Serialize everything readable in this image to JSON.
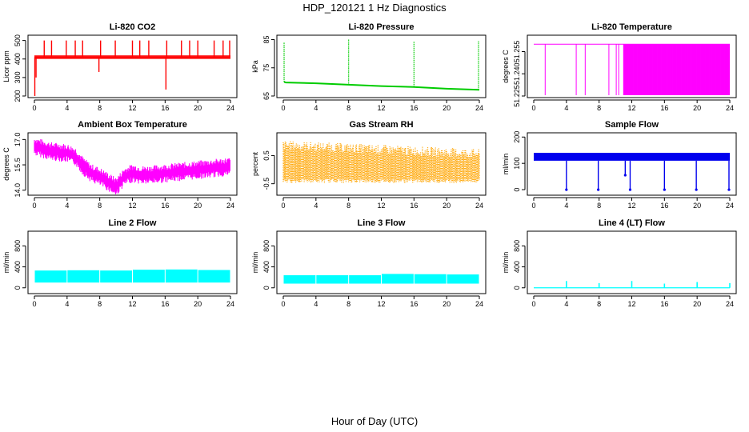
{
  "title": "HDP_120121  1 Hz Diagnostics",
  "xlabel": "Hour of Day (UTC)",
  "chart_data": [
    {
      "type": "line",
      "title": "Li-820 CO2",
      "ylabel": "Licor ppm",
      "color": "#ff0000",
      "xticks": [
        "0",
        "4",
        "8",
        "12",
        "16",
        "20",
        "24"
      ],
      "yticks": [
        {
          "v": 200,
          "label": "200"
        },
        {
          "v": 300,
          "label": "300"
        },
        {
          "v": 400,
          "label": "400"
        },
        {
          "v": 500,
          "label": "500"
        }
      ],
      "xlim": [
        0,
        24
      ],
      "ylim": [
        200,
        520
      ],
      "baseline": 410,
      "band": [
        400,
        420
      ],
      "spikes": [
        {
          "x": 0.05,
          "y": 200
        },
        {
          "x": 0.2,
          "y": 300
        },
        {
          "x": 1.2,
          "y": 500
        },
        {
          "x": 2.1,
          "y": 500
        },
        {
          "x": 3.9,
          "y": 500
        },
        {
          "x": 5.0,
          "y": 500
        },
        {
          "x": 5.9,
          "y": 500
        },
        {
          "x": 7.9,
          "y": 330
        },
        {
          "x": 8.1,
          "y": 500
        },
        {
          "x": 9.9,
          "y": 500
        },
        {
          "x": 12.0,
          "y": 500
        },
        {
          "x": 12.9,
          "y": 500
        },
        {
          "x": 14.0,
          "y": 500
        },
        {
          "x": 16.1,
          "y": 235
        },
        {
          "x": 16.2,
          "y": 500
        },
        {
          "x": 18.0,
          "y": 500
        },
        {
          "x": 19.0,
          "y": 500
        },
        {
          "x": 20.0,
          "y": 500
        },
        {
          "x": 22.0,
          "y": 500
        },
        {
          "x": 23.1,
          "y": 500
        },
        {
          "x": 23.9,
          "y": 500
        }
      ]
    },
    {
      "type": "line",
      "title": "Li-820 Pressure",
      "ylabel": "kPa",
      "color": "#00cc00",
      "xticks": [
        "0",
        "4",
        "8",
        "12",
        "16",
        "20",
        "24"
      ],
      "yticks": [
        {
          "v": 65,
          "label": "65"
        },
        {
          "v": 75,
          "label": "75"
        },
        {
          "v": 85,
          "label": "85"
        }
      ],
      "xlim": [
        0,
        24
      ],
      "ylim": [
        65,
        86
      ],
      "series": [
        {
          "x": 0.1,
          "y": 70
        },
        {
          "x": 0.3,
          "y": 69.8
        },
        {
          "x": 4,
          "y": 69.5
        },
        {
          "x": 8,
          "y": 69
        },
        {
          "x": 12,
          "y": 68.5
        },
        {
          "x": 16,
          "y": 68.2
        },
        {
          "x": 20,
          "y": 67.6
        },
        {
          "x": 24,
          "y": 67.2
        }
      ],
      "spikes": [
        {
          "x": 0.1,
          "y": 84
        },
        {
          "x": 8.0,
          "y": 85
        },
        {
          "x": 16.0,
          "y": 84.5
        },
        {
          "x": 23.9,
          "y": 84.5
        }
      ]
    },
    {
      "type": "line",
      "title": "Li-820 Temperature",
      "ylabel": "degrees C",
      "color": "#ff00ff",
      "xticks": [
        "0",
        "4",
        "8",
        "12",
        "16",
        "20",
        "24"
      ],
      "yticks": [
        {
          "v": 51.225,
          "label": "51.225"
        },
        {
          "v": 51.24,
          "label": "51.240"
        },
        {
          "v": 51.255,
          "label": "51.255"
        }
      ],
      "xlim": [
        0,
        24
      ],
      "ylim": [
        51.225,
        51.265
      ],
      "top_value": 51.26,
      "dense_from": 11,
      "drops": [
        1.4,
        5.2,
        6.3,
        9.2,
        10.1,
        10.4
      ]
    },
    {
      "type": "line",
      "title": "Ambient Box Temperature",
      "ylabel": "degrees C",
      "color": "#ff00ff",
      "xticks": [
        "0",
        "4",
        "8",
        "12",
        "16",
        "20",
        "24"
      ],
      "yticks": [
        {
          "v": 14.0,
          "label": "14.0"
        },
        {
          "v": 15.5,
          "label": "15.5"
        },
        {
          "v": 17.0,
          "label": "17.0"
        }
      ],
      "xlim": [
        0,
        24
      ],
      "ylim": [
        13.8,
        17.3
      ],
      "series": [
        {
          "x": 0,
          "y": 16.6
        },
        {
          "x": 2,
          "y": 16.3
        },
        {
          "x": 4,
          "y": 16.2
        },
        {
          "x": 5,
          "y": 16.0
        },
        {
          "x": 6,
          "y": 15.4
        },
        {
          "x": 7,
          "y": 15.0
        },
        {
          "x": 8,
          "y": 14.8
        },
        {
          "x": 9,
          "y": 14.5
        },
        {
          "x": 10,
          "y": 14.2
        },
        {
          "x": 11,
          "y": 14.8
        },
        {
          "x": 12,
          "y": 15.0
        },
        {
          "x": 13,
          "y": 14.9
        },
        {
          "x": 14,
          "y": 14.9
        },
        {
          "x": 16,
          "y": 15.0
        },
        {
          "x": 18,
          "y": 15.1
        },
        {
          "x": 20,
          "y": 15.2
        },
        {
          "x": 22,
          "y": 15.3
        },
        {
          "x": 24,
          "y": 15.4
        }
      ],
      "spread": 0.55
    },
    {
      "type": "line",
      "title": "Gas Stream RH",
      "ylabel": "percent",
      "color": "#ffa500",
      "xticks": [
        "0",
        "4",
        "8",
        "12",
        "16",
        "20",
        "24"
      ],
      "yticks": [
        {
          "v": -0.5,
          "label": "-0.5"
        },
        {
          "v": 0.5,
          "label": "0.5"
        }
      ],
      "xlim": [
        0,
        24
      ],
      "ylim": [
        -0.85,
        1.25
      ],
      "band_low": -0.4,
      "band_high_start": 0.85,
      "band_high_end": 0.55
    },
    {
      "type": "line",
      "title": "Sample Flow",
      "ylabel": "ml/min",
      "color": "#0000ee",
      "xticks": [
        "0",
        "4",
        "8",
        "12",
        "16",
        "20",
        "24"
      ],
      "yticks": [
        {
          "v": 0,
          "label": "0"
        },
        {
          "v": 100,
          "label": "100"
        },
        {
          "v": 200,
          "label": "200"
        }
      ],
      "xlim": [
        0,
        24
      ],
      "ylim": [
        -15,
        210
      ],
      "band": [
        110,
        140
      ],
      "dips": [
        {
          "x": 4.0,
          "y": 0
        },
        {
          "x": 7.9,
          "y": 0
        },
        {
          "x": 11.8,
          "y": 0
        },
        {
          "x": 11.2,
          "y": 55
        },
        {
          "x": 16.0,
          "y": 0
        },
        {
          "x": 19.9,
          "y": 0
        },
        {
          "x": 23.9,
          "y": 0
        }
      ]
    },
    {
      "type": "area",
      "title": "Line 2 Flow",
      "ylabel": "ml/min",
      "color": "#00ffff",
      "xticks": [
        "0",
        "4",
        "8",
        "12",
        "16",
        "20",
        "24"
      ],
      "yticks": [
        {
          "v": 0,
          "label": "0"
        },
        {
          "v": 400,
          "label": "400"
        },
        {
          "v": 800,
          "label": "800"
        }
      ],
      "xlim": [
        0,
        24
      ],
      "ylim": [
        -80,
        1050
      ],
      "band_low": 100,
      "segments": [
        {
          "x0": 0,
          "x1": 4,
          "top": 330
        },
        {
          "x0": 4,
          "x1": 8,
          "top": 335
        },
        {
          "x0": 8,
          "x1": 12,
          "top": 330
        },
        {
          "x0": 12,
          "x1": 16,
          "top": 345
        },
        {
          "x0": 16,
          "x1": 20,
          "top": 350
        },
        {
          "x0": 20,
          "x1": 24,
          "top": 340
        }
      ]
    },
    {
      "type": "area",
      "title": "Line 3 Flow",
      "ylabel": "ml/min",
      "color": "#00ffff",
      "xticks": [
        "0",
        "4",
        "8",
        "12",
        "16",
        "20",
        "24"
      ],
      "yticks": [
        {
          "v": 0,
          "label": "0"
        },
        {
          "v": 400,
          "label": "400"
        },
        {
          "v": 800,
          "label": "800"
        }
      ],
      "xlim": [
        0,
        24
      ],
      "ylim": [
        -80,
        1050
      ],
      "band_low": 80,
      "segments": [
        {
          "x0": 0,
          "x1": 4,
          "top": 240
        },
        {
          "x0": 4,
          "x1": 8,
          "top": 240
        },
        {
          "x0": 8,
          "x1": 12,
          "top": 240
        },
        {
          "x0": 12,
          "x1": 16,
          "top": 265
        },
        {
          "x0": 16,
          "x1": 20,
          "top": 260
        },
        {
          "x0": 20,
          "x1": 24,
          "top": 255
        }
      ]
    },
    {
      "type": "line",
      "title": "Line 4 (LT) Flow",
      "ylabel": "ml/min",
      "color": "#00ffff",
      "xticks": [
        "0",
        "4",
        "8",
        "12",
        "16",
        "20",
        "24"
      ],
      "yticks": [
        {
          "v": 0,
          "label": "0"
        },
        {
          "v": 400,
          "label": "400"
        },
        {
          "v": 800,
          "label": "800"
        }
      ],
      "xlim": [
        0,
        24
      ],
      "ylim": [
        -80,
        1050
      ],
      "baseline": 0,
      "spikes": [
        {
          "x": 4.0,
          "y": 130
        },
        {
          "x": 8.0,
          "y": 90
        },
        {
          "x": 12.0,
          "y": 130
        },
        {
          "x": 16.0,
          "y": 80
        },
        {
          "x": 20.0,
          "y": 110
        },
        {
          "x": 24.0,
          "y": 90
        }
      ]
    }
  ]
}
